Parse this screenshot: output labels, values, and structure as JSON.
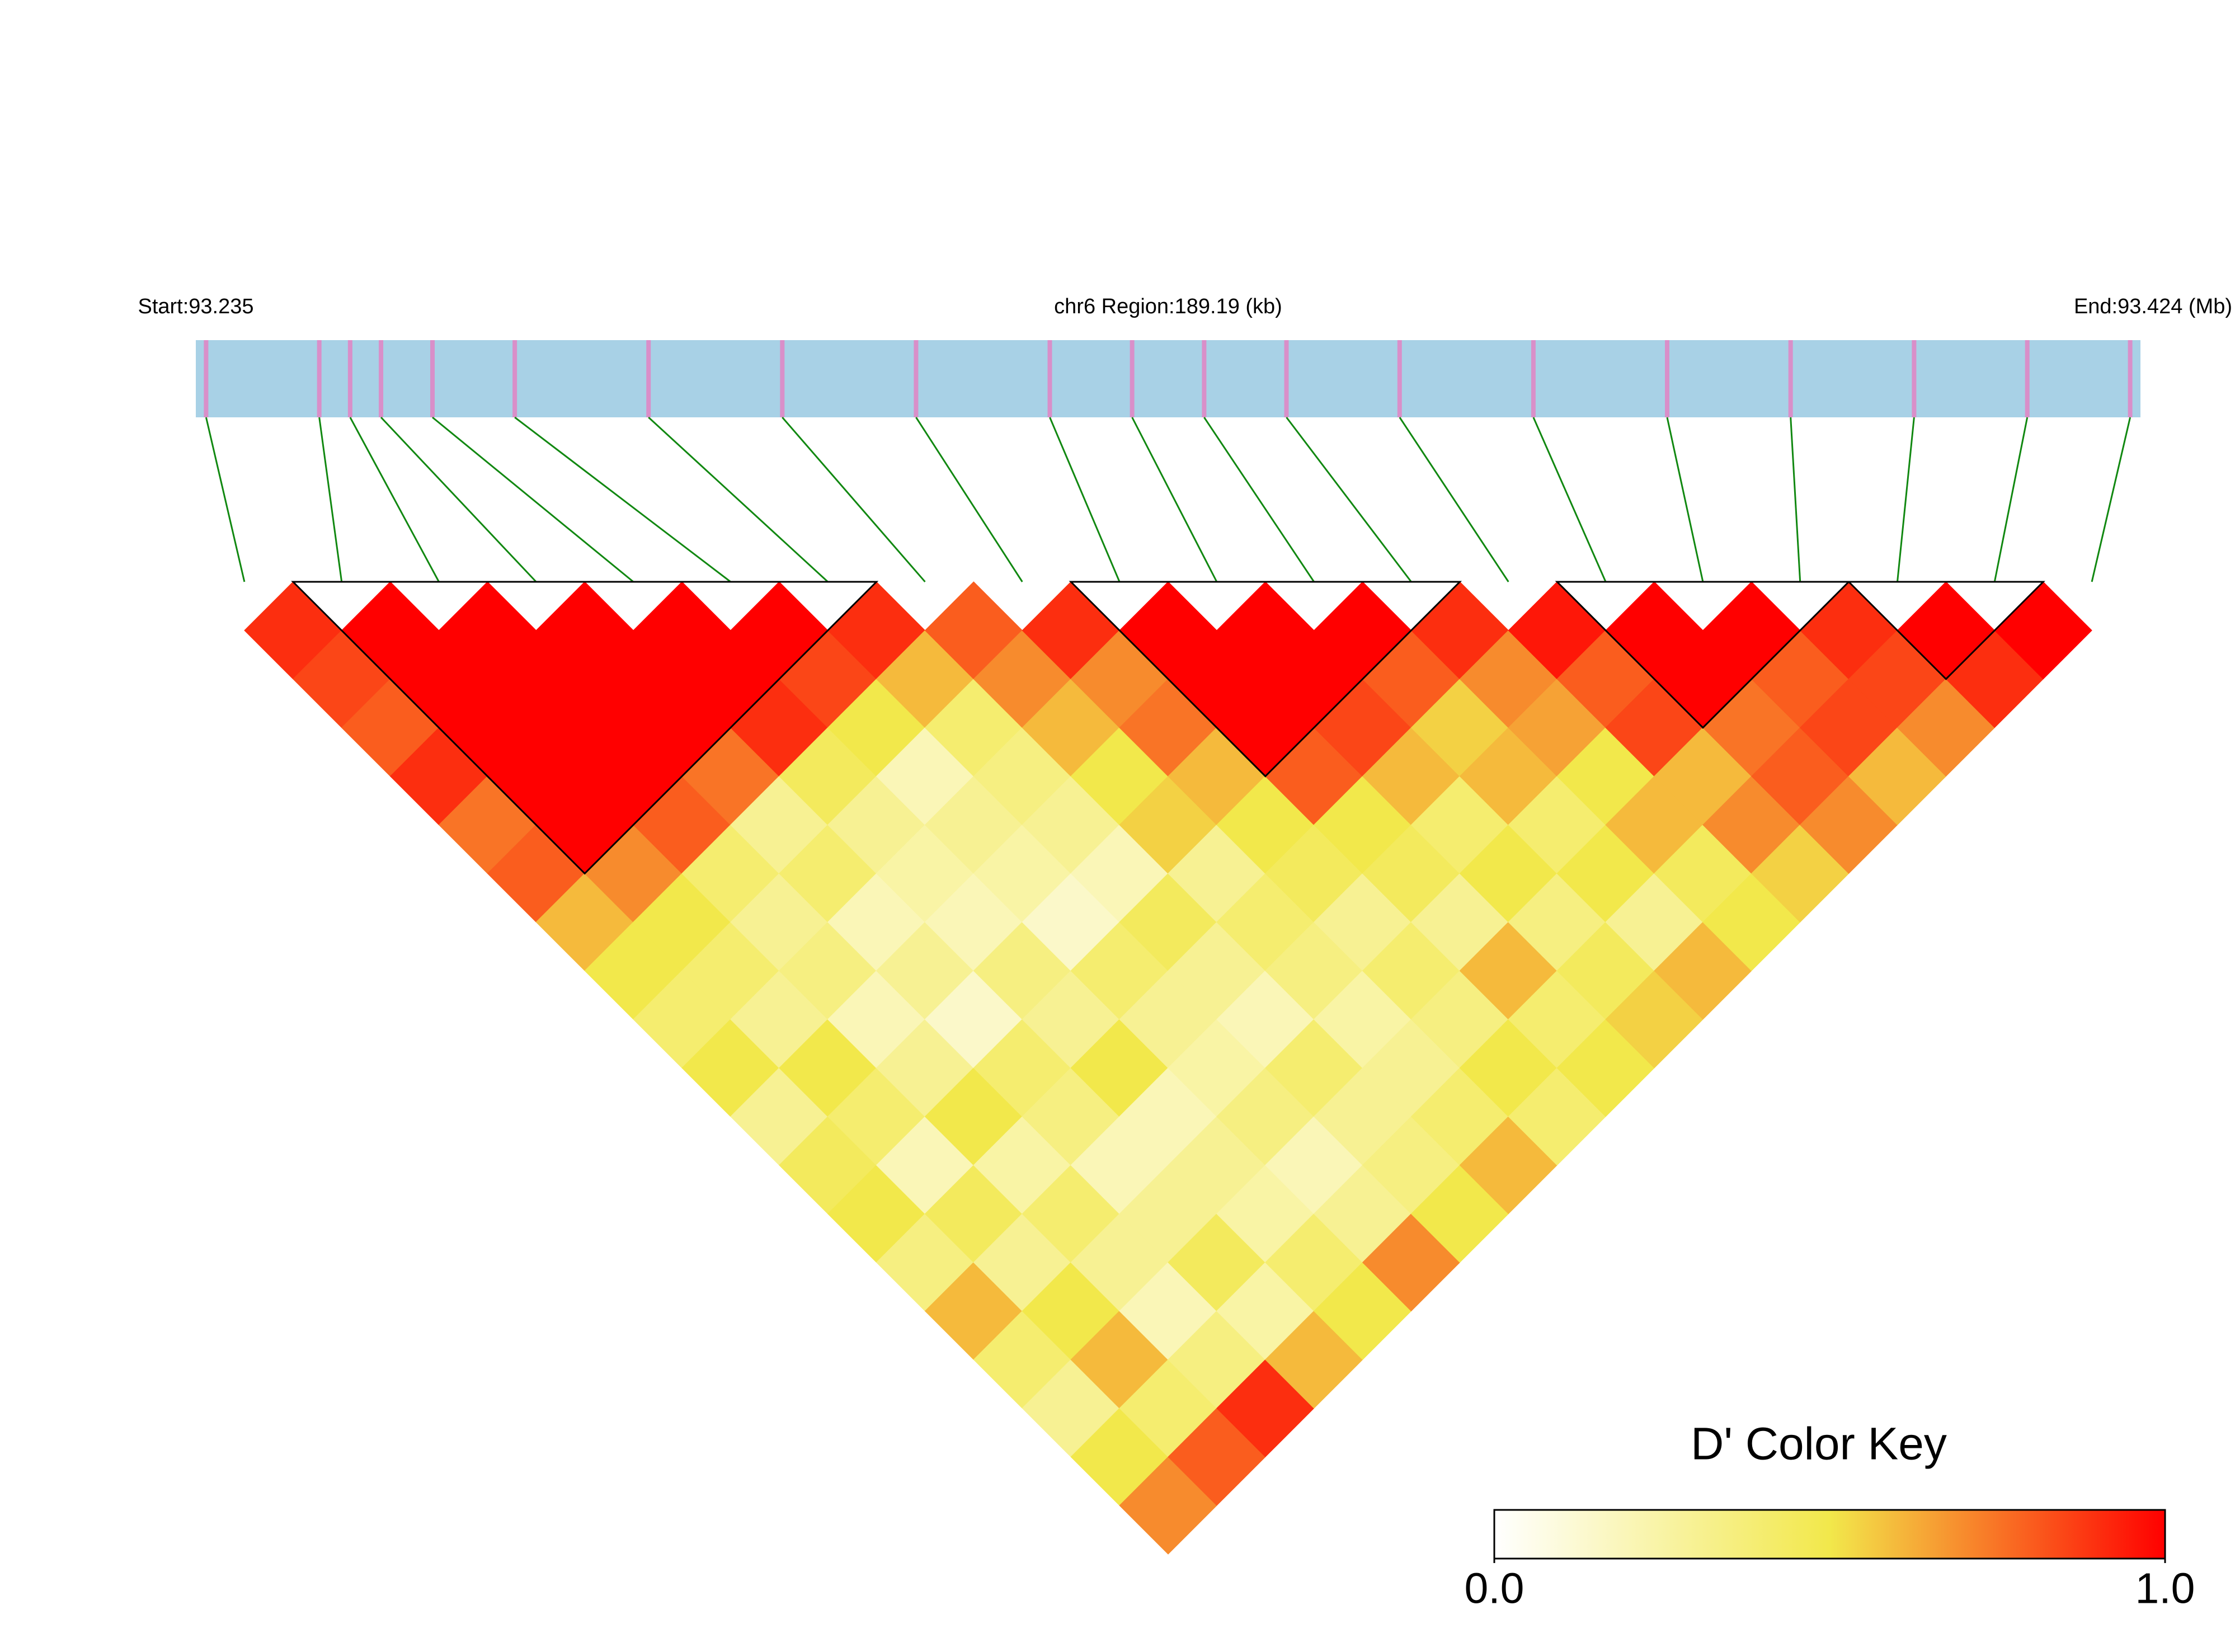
{
  "chart_data": {
    "type": "ld_heatmap",
    "start_label": "Start:93.235",
    "region_label": "chr6 Region:189.19 (kb)",
    "end_label": "End:93.424 (Mb)",
    "xlim": [
      93.235,
      93.424
    ],
    "snp_positions": [
      93.236,
      93.247,
      93.25,
      93.253,
      93.258,
      93.266,
      93.279,
      93.292,
      93.305,
      93.318,
      93.326,
      93.333,
      93.341,
      93.352,
      93.365,
      93.378,
      93.39,
      93.402,
      93.413,
      93.423
    ],
    "ld_matrix": [
      [
        0.9,
        0.85,
        0.8,
        0.9,
        0.75,
        0.8,
        0.6,
        0.5,
        0.4,
        0.5,
        0.3,
        0.45,
        0.5,
        0.35,
        0.6,
        0.4,
        0.3,
        0.5,
        0.7
      ],
      [
        1,
        1,
        1,
        1,
        1,
        0.7,
        0.5,
        0.4,
        0.3,
        0.5,
        0.4,
        0.2,
        0.45,
        0.3,
        0.5,
        0.6,
        0.4,
        0.8
      ],
      [
        1,
        1,
        1,
        1,
        0.8,
        0.4,
        0.3,
        0.35,
        0.2,
        0.3,
        0.5,
        0.25,
        0.4,
        0.3,
        0.2,
        0.35,
        0.9
      ],
      [
        1,
        1,
        1,
        0.75,
        0.3,
        0.4,
        0.2,
        0.3,
        0.15,
        0.4,
        0.35,
        0.2,
        0.3,
        0.45,
        0.25,
        0.6
      ],
      [
        1,
        1,
        0.9,
        0.45,
        0.3,
        0.25,
        0.2,
        0.35,
        0.3,
        0.5,
        0.2,
        0.3,
        0.25,
        0.4,
        0.5
      ],
      [
        1,
        0.85,
        0.5,
        0.2,
        0.3,
        0.25,
        0.15,
        0.4,
        0.3,
        0.25,
        0.35,
        0.2,
        0.3,
        0.7
      ],
      [
        0.9,
        0.6,
        0.4,
        0.35,
        0.3,
        0.2,
        0.45,
        0.3,
        0.2,
        0.4,
        0.3,
        0.35,
        0.5
      ],
      [
        0.8,
        0.7,
        0.6,
        0.5,
        0.55,
        0.3,
        0.4,
        0.35,
        0.25,
        0.3,
        0.4,
        0.6
      ],
      [
        0.9,
        0.7,
        0.75,
        0.6,
        0.5,
        0.45,
        0.3,
        0.4,
        0.35,
        0.5,
        0.4
      ],
      [
        1,
        1,
        1,
        0.8,
        0.5,
        0.45,
        0.3,
        0.6,
        0.4,
        0.5
      ],
      [
        1,
        1,
        0.85,
        0.6,
        0.4,
        0.5,
        0.35,
        0.45,
        0.55
      ],
      [
        1,
        0.8,
        0.55,
        0.6,
        0.4,
        0.5,
        0.3,
        0.6
      ],
      [
        0.9,
        0.7,
        0.65,
        0.5,
        0.6,
        0.45,
        0.5
      ],
      [
        0.95,
        0.8,
        0.85,
        0.6,
        0.7,
        0.55
      ],
      [
        1,
        1,
        0.75,
        0.8,
        0.7
      ],
      [
        1,
        0.8,
        0.85,
        0.6
      ],
      [
        0.9,
        0.85,
        0.7
      ],
      [
        1,
        0.9
      ],
      [
        1
      ]
    ],
    "blocks": [
      [
        1,
        6
      ],
      [
        9,
        12
      ],
      [
        14,
        16
      ],
      [
        17,
        18
      ]
    ],
    "colors": [
      "#ffffff",
      "#f2e84b",
      "#ff0000"
    ],
    "colorkey": {
      "title": "D' Color Key",
      "lim": [
        0,
        1
      ],
      "ticks": [
        {
          "value": 0,
          "label": "0.0"
        },
        {
          "value": 1,
          "label": "1.0"
        }
      ]
    }
  }
}
